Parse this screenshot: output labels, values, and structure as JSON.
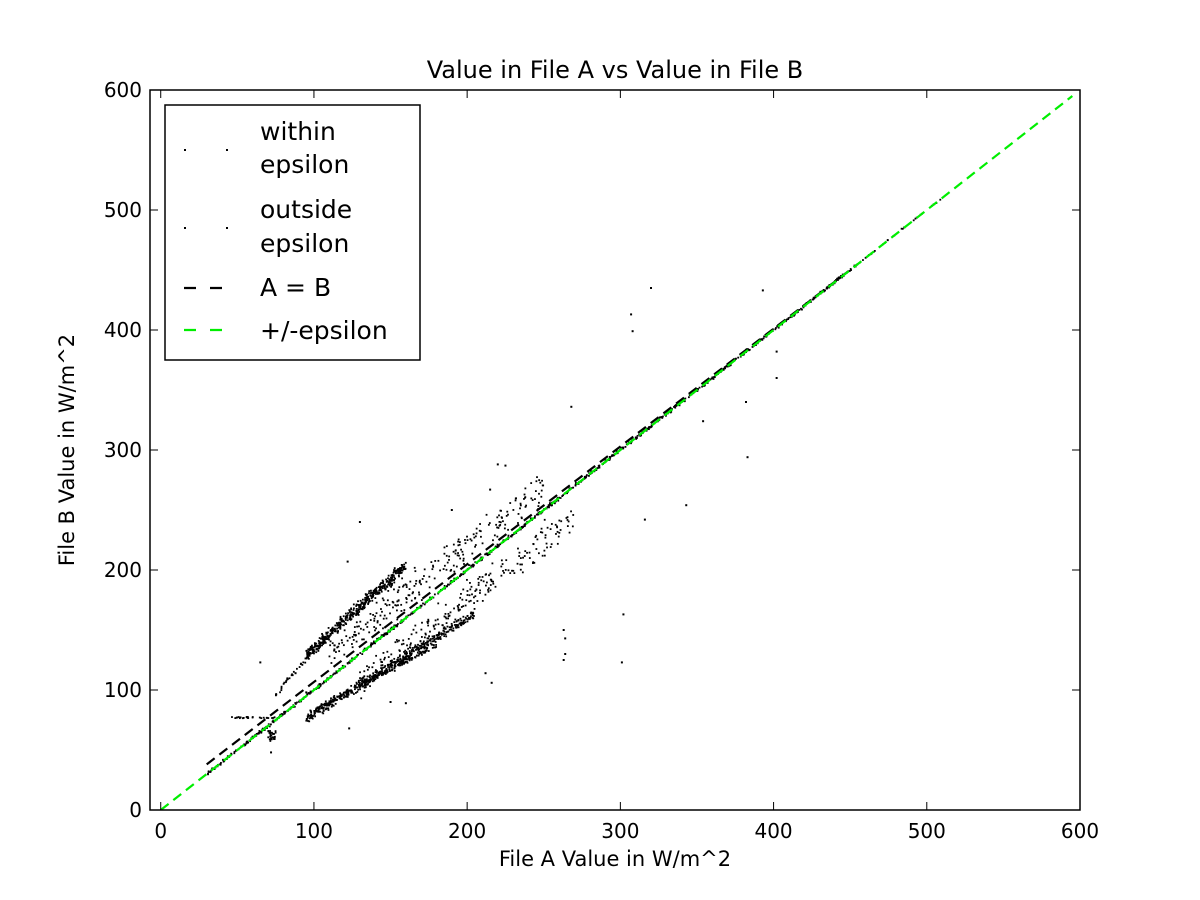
{
  "chart_data": {
    "type": "scatter",
    "title": "Value in File A vs Value in File B",
    "xlabel": "File A Value in W/m^2",
    "ylabel": "File B Value in W/m^2",
    "xlim": [
      -7,
      600
    ],
    "ylim": [
      0,
      600
    ],
    "x_ticks": [
      "0",
      "100",
      "200",
      "300",
      "400",
      "500",
      "600"
    ],
    "y_ticks": [
      "0",
      "100",
      "200",
      "300",
      "400",
      "500",
      "600"
    ],
    "x_tick_values": [
      0,
      100,
      200,
      300,
      400,
      500,
      600
    ],
    "y_tick_values": [
      0,
      100,
      200,
      300,
      400,
      500,
      600
    ],
    "grid": false,
    "legend_position": "upper-left",
    "legend": [
      {
        "label_lines": [
          "within",
          "epsilon"
        ],
        "marker": "dot",
        "color": "#000000"
      },
      {
        "label_lines": [
          "outside",
          "epsilon"
        ],
        "marker": "dot",
        "color": "#000000"
      },
      {
        "label_lines": [
          "A = B"
        ],
        "marker": "dashed-line",
        "color": "#000000"
      },
      {
        "label_lines": [
          "+/-epsilon"
        ],
        "marker": "dashed-line",
        "color": "#00ee00"
      }
    ],
    "series": [
      {
        "name": "within epsilon",
        "color": "#000000",
        "clusters": [
          {
            "x0": 30,
            "x1": 455,
            "slope": 1.0,
            "offset": 0,
            "spread": 2,
            "n": 900
          },
          {
            "x0": 455,
            "x1": 510,
            "slope": 1.0,
            "offset": 0,
            "spread": 1,
            "n": 30
          },
          {
            "x0": 45,
            "x1": 75,
            "slope": 0.0,
            "offset": 77,
            "spread": 1,
            "n": 25
          }
        ]
      },
      {
        "name": "outside epsilon",
        "color": "#000000",
        "clusters": [
          {
            "x0": 95,
            "x1": 160,
            "slope": 1.15,
            "offset": 20,
            "spread": 8,
            "n": 450
          },
          {
            "x0": 75,
            "x1": 110,
            "slope": 1.4,
            "offset": -8,
            "spread": 4,
            "n": 60
          },
          {
            "x0": 95,
            "x1": 205,
            "slope": 0.8,
            "offset": 0,
            "spread": 6,
            "n": 450
          },
          {
            "x0": 100,
            "x1": 180,
            "slope": 0.68,
            "offset": 15,
            "spread": 3,
            "n": 160
          },
          {
            "x0": 110,
            "x1": 250,
            "slope": 1.0,
            "offset": 20,
            "spread": 22,
            "n": 260
          },
          {
            "x0": 130,
            "x1": 270,
            "slope": 1.0,
            "offset": -25,
            "spread": 20,
            "n": 260
          },
          {
            "x0": 70,
            "x1": 75,
            "slope": 0.0,
            "offset": 62,
            "spread": 8,
            "n": 30
          }
        ],
        "points": [
          [
            65,
            123
          ],
          [
            72,
            48
          ],
          [
            307,
            413
          ],
          [
            308,
            399
          ],
          [
            320,
            435
          ],
          [
            393,
            433
          ],
          [
            402,
            382
          ],
          [
            402,
            360
          ],
          [
            382,
            340
          ],
          [
            383,
            294
          ],
          [
            354,
            324
          ],
          [
            343,
            254
          ],
          [
            316,
            242
          ],
          [
            302,
            163
          ],
          [
            301,
            123
          ],
          [
            263,
            150
          ],
          [
            264,
            143
          ],
          [
            264,
            130
          ],
          [
            263,
            125
          ],
          [
            225,
            287
          ],
          [
            220,
            288
          ],
          [
            212,
            114
          ],
          [
            216,
            106
          ],
          [
            268,
            336
          ],
          [
            123,
            68
          ],
          [
            150,
            90
          ],
          [
            160,
            89
          ],
          [
            190,
            250
          ],
          [
            215,
            267
          ],
          [
            122,
            207
          ],
          [
            130,
            240
          ],
          [
            95,
            98
          ],
          [
            88,
            114
          ]
        ]
      }
    ],
    "reference_lines": [
      {
        "name": "A = B",
        "style": "dashed",
        "color": "#000000",
        "from": [
          30,
          38
        ],
        "to": [
          455,
          455
        ]
      },
      {
        "name": "+/-epsilon",
        "style": "dashed",
        "color": "#00ee00",
        "from": [
          0,
          0
        ],
        "to": [
          595,
          595
        ]
      }
    ]
  }
}
